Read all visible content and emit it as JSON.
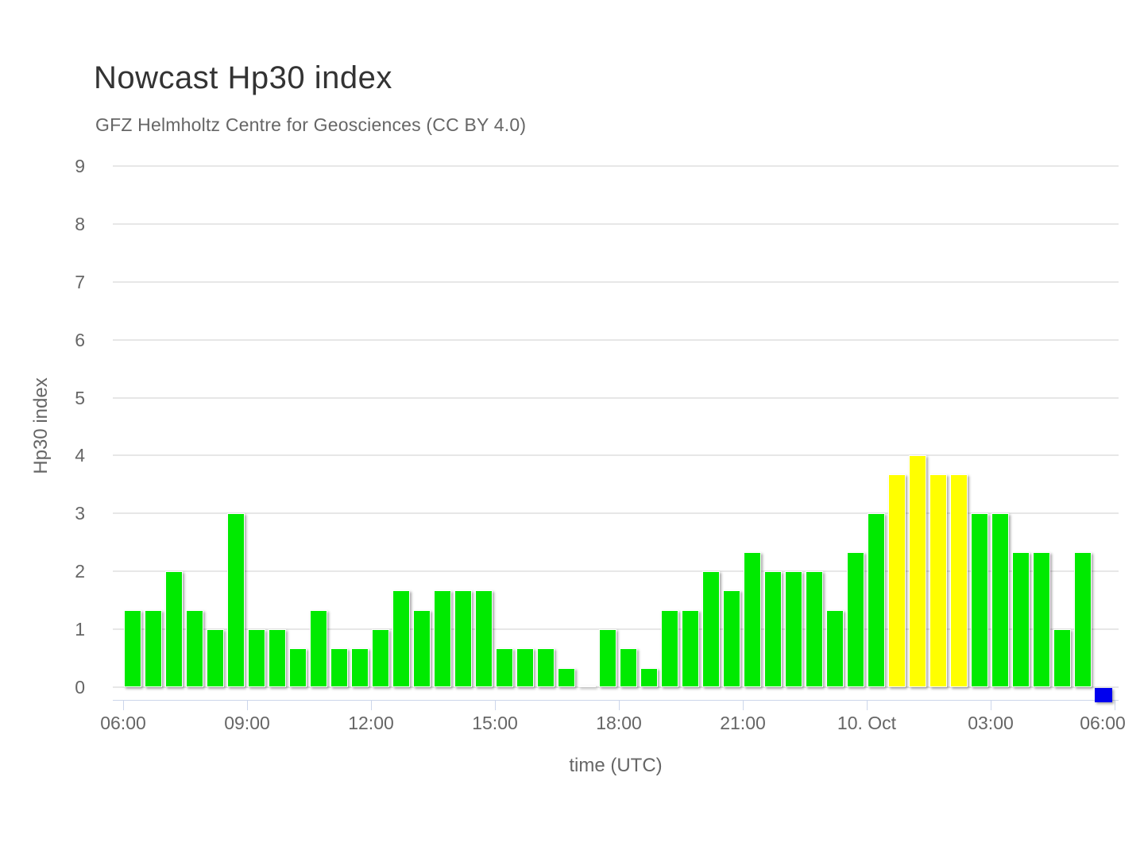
{
  "header": {
    "title": "Nowcast Hp30 index",
    "subtitle": "GFZ Helmholtz Centre for Geosciences (CC BY 4.0)"
  },
  "chart_data": {
    "type": "bar",
    "title": "Nowcast Hp30 index",
    "subtitle": "GFZ Helmholtz Centre for Geosciences (CC BY 4.0)",
    "xlabel": "time (UTC)",
    "ylabel": "Hp30 index",
    "ylim": [
      0,
      9
    ],
    "y_ticks": [
      0,
      1,
      2,
      3,
      4,
      5,
      6,
      7,
      8,
      9
    ],
    "x_tick_labels": [
      "06:00",
      "09:00",
      "12:00",
      "15:00",
      "18:00",
      "21:00",
      "10. Oct",
      "03:00",
      "06:00"
    ],
    "grid": "horizontal-only",
    "legend_position": "none",
    "bar_interval_minutes": 30,
    "colors": {
      "green": "#00ea00",
      "yellow": "#ffff00",
      "blue": "#0000ee",
      "grid": "#e7e7e7",
      "axis_line": "#ccd6eb",
      "label_text": "#666666",
      "title_text": "#333333"
    },
    "points": [
      {
        "t": "06:00",
        "v": 1.33,
        "c": "green"
      },
      {
        "t": "06:30",
        "v": 1.33,
        "c": "green"
      },
      {
        "t": "07:00",
        "v": 2.0,
        "c": "green"
      },
      {
        "t": "07:30",
        "v": 1.33,
        "c": "green"
      },
      {
        "t": "08:00",
        "v": 1.0,
        "c": "green"
      },
      {
        "t": "08:30",
        "v": 3.0,
        "c": "green"
      },
      {
        "t": "09:00",
        "v": 1.0,
        "c": "green"
      },
      {
        "t": "09:30",
        "v": 1.0,
        "c": "green"
      },
      {
        "t": "10:00",
        "v": 0.67,
        "c": "green"
      },
      {
        "t": "10:30",
        "v": 1.33,
        "c": "green"
      },
      {
        "t": "11:00",
        "v": 0.67,
        "c": "green"
      },
      {
        "t": "11:30",
        "v": 0.67,
        "c": "green"
      },
      {
        "t": "12:00",
        "v": 1.0,
        "c": "green"
      },
      {
        "t": "12:30",
        "v": 1.67,
        "c": "green"
      },
      {
        "t": "13:00",
        "v": 1.33,
        "c": "green"
      },
      {
        "t": "13:30",
        "v": 1.67,
        "c": "green"
      },
      {
        "t": "14:00",
        "v": 1.67,
        "c": "green"
      },
      {
        "t": "14:30",
        "v": 1.67,
        "c": "green"
      },
      {
        "t": "15:00",
        "v": 0.67,
        "c": "green"
      },
      {
        "t": "15:30",
        "v": 0.67,
        "c": "green"
      },
      {
        "t": "16:00",
        "v": 0.67,
        "c": "green"
      },
      {
        "t": "16:30",
        "v": 0.33,
        "c": "green"
      },
      {
        "t": "17:00",
        "v": 0.0,
        "c": "green"
      },
      {
        "t": "17:30",
        "v": 1.0,
        "c": "green"
      },
      {
        "t": "18:00",
        "v": 0.67,
        "c": "green"
      },
      {
        "t": "18:30",
        "v": 0.33,
        "c": "green"
      },
      {
        "t": "19:00",
        "v": 1.33,
        "c": "green"
      },
      {
        "t": "19:30",
        "v": 1.33,
        "c": "green"
      },
      {
        "t": "20:00",
        "v": 2.0,
        "c": "green"
      },
      {
        "t": "20:30",
        "v": 1.67,
        "c": "green"
      },
      {
        "t": "21:00",
        "v": 2.33,
        "c": "green"
      },
      {
        "t": "21:30",
        "v": 2.0,
        "c": "green"
      },
      {
        "t": "22:00",
        "v": 2.0,
        "c": "green"
      },
      {
        "t": "22:30",
        "v": 2.0,
        "c": "green"
      },
      {
        "t": "23:00",
        "v": 1.33,
        "c": "green"
      },
      {
        "t": "23:30",
        "v": 2.33,
        "c": "green"
      },
      {
        "t": "00:00",
        "v": 3.0,
        "c": "green"
      },
      {
        "t": "00:30",
        "v": 3.67,
        "c": "yellow"
      },
      {
        "t": "01:00",
        "v": 4.0,
        "c": "yellow"
      },
      {
        "t": "01:30",
        "v": 3.67,
        "c": "yellow"
      },
      {
        "t": "02:00",
        "v": 3.67,
        "c": "yellow"
      },
      {
        "t": "02:30",
        "v": 3.0,
        "c": "green"
      },
      {
        "t": "03:00",
        "v": 3.0,
        "c": "green"
      },
      {
        "t": "03:30",
        "v": 2.33,
        "c": "green"
      },
      {
        "t": "04:00",
        "v": 2.33,
        "c": "green"
      },
      {
        "t": "04:30",
        "v": 1.0,
        "c": "green"
      },
      {
        "t": "05:00",
        "v": 2.33,
        "c": "green"
      },
      {
        "t": "05:30",
        "v": 0.0,
        "c": "blue",
        "marker": true
      }
    ]
  }
}
